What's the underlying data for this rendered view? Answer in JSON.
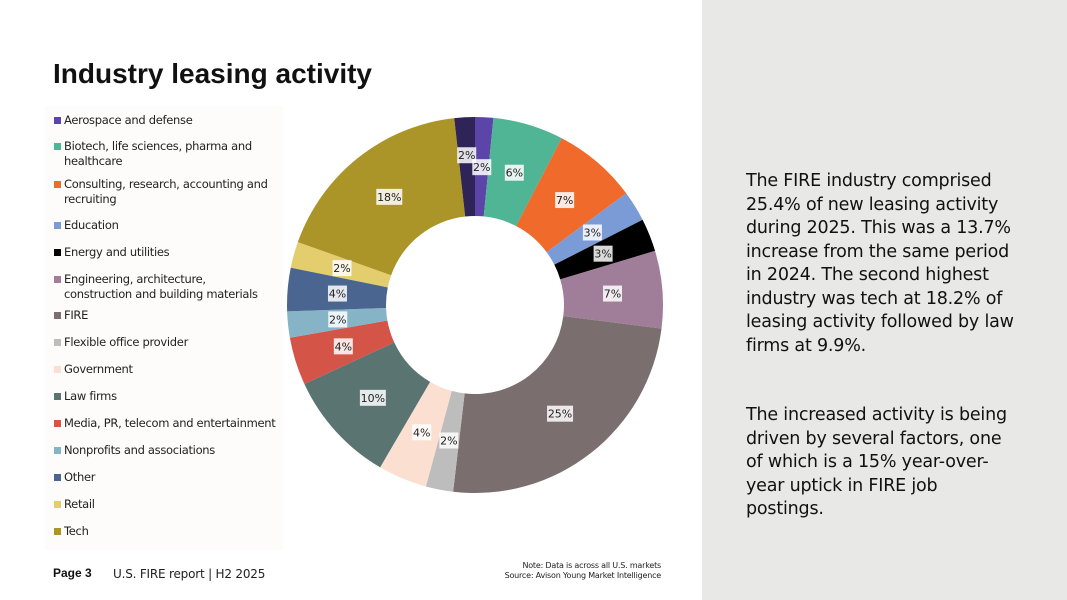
{
  "title": "Industry leasing activity",
  "chart_data": {
    "type": "pie",
    "style": "donut",
    "legend_placement": "left",
    "categories": [
      "Aerospace and defense",
      "Biotech, life sciences, pharma and healthcare",
      "Consulting, research, accounting and recruiting",
      "Education",
      "Energy and utilities",
      "Engineering, architecture, construction and building materials",
      "FIRE",
      "Flexible office provider",
      "Government",
      "Law firms",
      "Media, PR, telecom and entertainment",
      "Nonprofits and associations",
      "Other",
      "Retail",
      "Tech"
    ],
    "values": [
      1.6,
      6.2,
      7.4,
      2.7,
      2.9,
      6.8,
      25.4,
      2.4,
      4.3,
      9.9,
      4.2,
      2.3,
      3.8,
      2.3,
      18.2
    ],
    "data_labels": [
      "2%",
      "6%",
      "7%",
      "3%",
      "3%",
      "7%",
      "25%",
      "2%",
      "4%",
      "10%",
      "4%",
      "2%",
      "4%",
      "2%",
      "18%"
    ],
    "colors": [
      "#5b45a8",
      "#4fb595",
      "#ef6a2b",
      "#7b9bd6",
      "#000000",
      "#a07d99",
      "#7a6f6e",
      "#bdbdbd",
      "#fbe0d2",
      "#5a7571",
      "#d45447",
      "#86b4c6",
      "#4a6690",
      "#e3cd6d",
      "#ab9428"
    ],
    "extra_slice": {
      "value": 1.8,
      "label": "2%",
      "color": "#2f2457"
    }
  },
  "footer": {
    "page": "Page 3",
    "report": "U.S. FIRE report | H2 2025",
    "note_line1": "Note: Data is across all U.S. markets",
    "note_line2": "Source: Avison Young Market Intelligence"
  },
  "side_panel": {
    "paragraph1": "The FIRE industry comprised 25.4% of new leasing activity during 2025. This was a 13.7% increase from the same period in 2024. The second highest industry was tech at 18.2% of leasing activity followed by law firms at 9.9%.",
    "paragraph2": "The increased activity is being driven by several factors, one of which is a 15% year-over-year uptick in FIRE job postings."
  }
}
